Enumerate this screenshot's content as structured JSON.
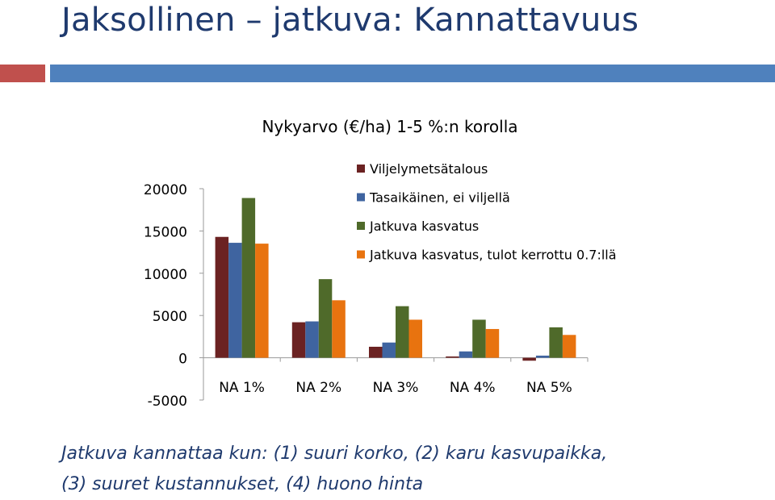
{
  "slide": {
    "title": "Jaksollinen – jatkuva: Kannattavuus",
    "caption_line1": "Jatkuva kannattaa kun: (1) suuri korko, (2) karu kasvupaikka,",
    "caption_line2": "(3) suuret kustannukset, (4) huono hinta"
  },
  "colors": {
    "title": "#1f3a6e",
    "accent_red": "#c0504d",
    "accent_blue": "#4f81bd"
  },
  "chart_data": {
    "type": "bar",
    "title": "Nykyarvo (€/ha) 1-5 %:n korolla",
    "xlabel": "",
    "ylabel": "",
    "categories": [
      "NA 1%",
      "NA  2%",
      "NA 3%",
      "NA 4%",
      "NA 5%"
    ],
    "yticks": [
      "20000",
      "15000",
      "10000",
      "5000",
      "0",
      "-5000"
    ],
    "ylim": [
      -5000,
      20000
    ],
    "grid": false,
    "legend_position": "top-right",
    "series": [
      {
        "name": "Viljelymetsätalous",
        "color": "#6b2222",
        "values": [
          14300,
          4200,
          1300,
          150,
          -350
        ]
      },
      {
        "name": "Tasaikäinen, ei viljellä",
        "color": "#3f64a0",
        "values": [
          13600,
          4300,
          1800,
          750,
          250
        ]
      },
      {
        "name": "Jatkuva kasvatus",
        "color": "#4f6a2a",
        "values": [
          18900,
          9300,
          6100,
          4500,
          3600
        ]
      },
      {
        "name": "Jatkuva kasvatus, tulot kerrottu 0.7:llä",
        "color": "#e8730f",
        "values": [
          13500,
          6800,
          4500,
          3400,
          2700
        ]
      }
    ]
  }
}
